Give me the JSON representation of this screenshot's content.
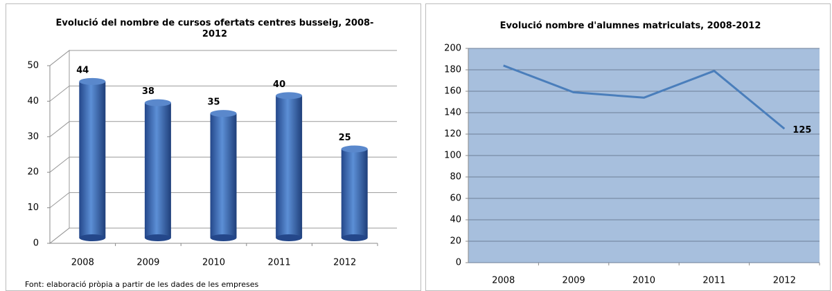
{
  "chart_data": [
    {
      "type": "bar3d",
      "title": "Evolució del nombre de cursos ofertats centres busseig, 2008-2012",
      "categories": [
        "2008",
        "2009",
        "2010",
        "2011",
        "2012"
      ],
      "values": [
        44,
        38,
        35,
        40,
        25
      ],
      "color": "#3f6fb5",
      "ylim": [
        0,
        50
      ],
      "yticks": [
        0,
        10,
        20,
        30,
        40,
        50
      ],
      "grid": true,
      "source": "Font: elaboració pròpia a partir de les dades de les empreses"
    },
    {
      "type": "line",
      "title": "Evolució nombre d'alumnes matriculats, 2008-2012",
      "categories": [
        "2008",
        "2009",
        "2010",
        "2011",
        "2012"
      ],
      "values": [
        184,
        159,
        154,
        179,
        125
      ],
      "value_labels": [
        null,
        null,
        null,
        null,
        "125"
      ],
      "color": "#4a7ebb",
      "plot_background": "#a7bfdd",
      "ylim": [
        0,
        200
      ],
      "yticks": [
        0,
        20,
        40,
        60,
        80,
        100,
        120,
        140,
        160,
        180,
        200
      ],
      "grid": true
    }
  ]
}
